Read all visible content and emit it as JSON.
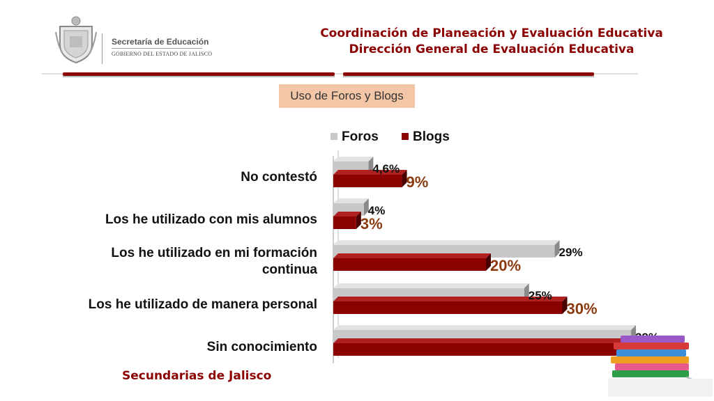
{
  "header": {
    "logo_text_1": "Secretaría de Educación",
    "logo_text_2": "GOBIERNO DEL ESTADO DE JALISCO",
    "org_line_1": "Coordinación de Planeación y Evaluación Educativa",
    "org_line_2": "Dirección General de Evaluación Educativa"
  },
  "section_title": "Uso de Foros y Blogs",
  "footer": "Secundarias de Jalisco",
  "colors": {
    "foros": "#c8c8c8",
    "blogs": "#8b0000",
    "accent": "#8b0000",
    "blogs_label": "#8b3a0f"
  },
  "chart_data": {
    "type": "bar",
    "orientation": "horizontal",
    "style": "3d",
    "categories": [
      "No contestó",
      "Los he utilizado con mis alumnos",
      "Los he utilizado en mi formación continua",
      "Los he utilizado de manera personal",
      "Sin conocimiento"
    ],
    "series": [
      {
        "name": "Foros",
        "values": [
          4.6,
          4,
          29,
          25,
          39
        ],
        "labels": [
          "4,6%",
          "4%",
          "29%",
          "25%",
          "39%"
        ]
      },
      {
        "name": "Blogs",
        "values": [
          9,
          3,
          20,
          30,
          38
        ],
        "labels": [
          "9%",
          "3%",
          "20%",
          "30%",
          "38%"
        ]
      }
    ],
    "xlim": [
      0,
      39
    ],
    "legend": "top",
    "grid": false,
    "title": "",
    "xlabel": "",
    "ylabel": ""
  }
}
